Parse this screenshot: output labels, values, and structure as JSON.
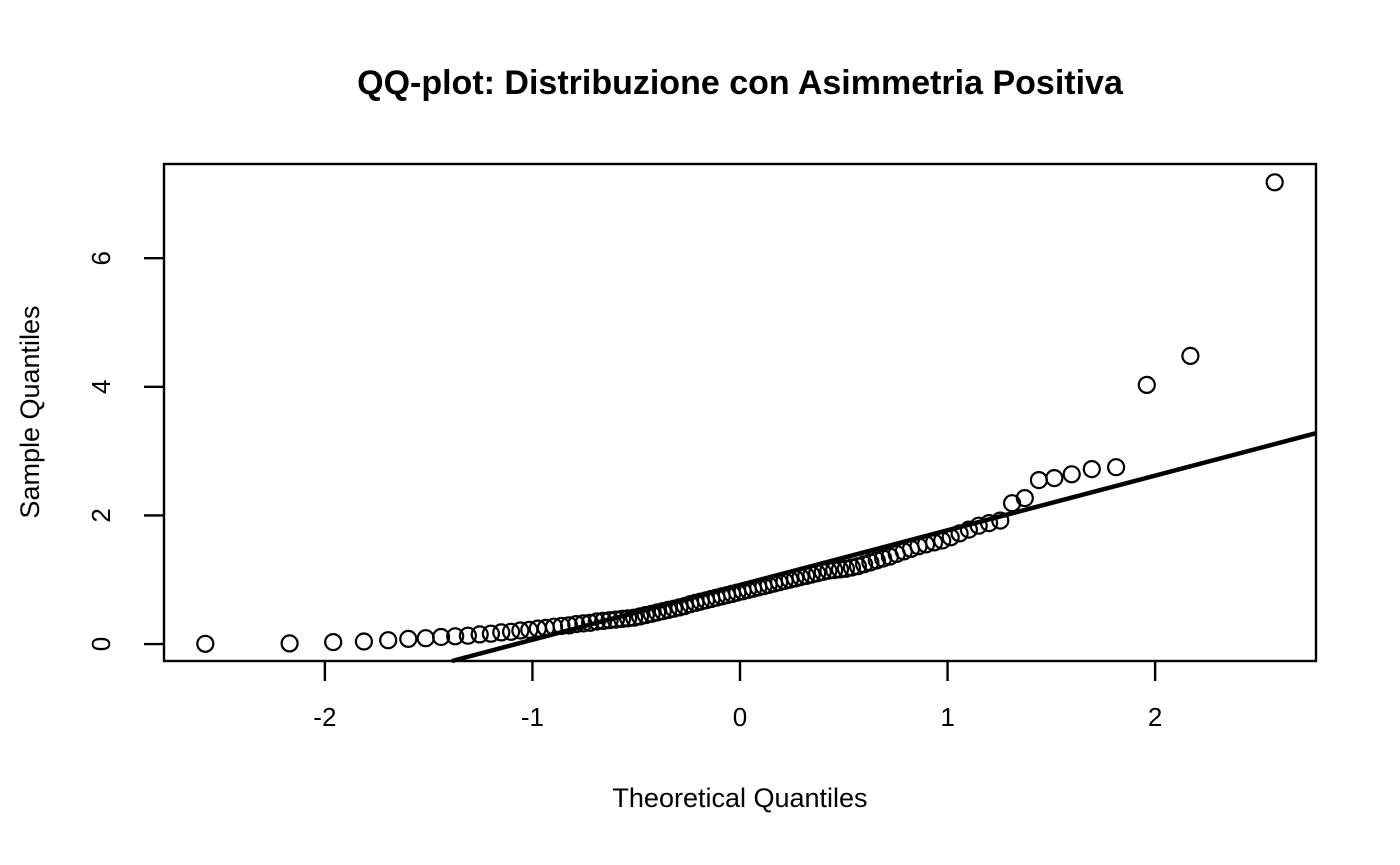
{
  "chart_data": {
    "type": "scatter",
    "subtype": "qq-plot",
    "title": "QQ-plot: Distribuzione con Asimmetria Positiva",
    "xlabel": "Theoretical Quantiles",
    "ylabel": "Sample Quantiles",
    "grid": false,
    "legend": "none",
    "xlim": [
      -2.775,
      2.775
    ],
    "ylim": [
      -0.264,
      7.465
    ],
    "x_ticks": [
      -2,
      -1,
      0,
      1,
      2
    ],
    "x_tick_labels": [
      "-2",
      "-1",
      "0",
      "1",
      "2"
    ],
    "y_ticks": [
      0,
      2,
      4,
      6
    ],
    "y_tick_labels": [
      "0",
      "2",
      "4",
      "6"
    ],
    "colors": {
      "background": "#ffffff",
      "points": "#000000",
      "reference_line": "#000000",
      "frame": "#000000",
      "text": "#000000"
    },
    "series": [
      {
        "name": "sample-vs-theoretical-quantiles",
        "marker": "open-circle",
        "x": [
          -2.576,
          -2.17,
          -1.96,
          -1.812,
          -1.695,
          -1.598,
          -1.514,
          -1.44,
          -1.372,
          -1.311,
          -1.254,
          -1.2,
          -1.15,
          -1.103,
          -1.058,
          -1.015,
          -0.974,
          -0.935,
          -0.896,
          -0.86,
          -0.824,
          -0.789,
          -0.755,
          -0.722,
          -0.69,
          -0.659,
          -0.628,
          -0.598,
          -0.568,
          -0.539,
          -0.51,
          -0.482,
          -0.454,
          -0.426,
          -0.399,
          -0.372,
          -0.345,
          -0.319,
          -0.292,
          -0.266,
          -0.24,
          -0.215,
          -0.189,
          -0.164,
          -0.138,
          -0.113,
          -0.088,
          -0.063,
          -0.038,
          -0.013,
          0.013,
          0.038,
          0.063,
          0.088,
          0.113,
          0.138,
          0.164,
          0.189,
          0.215,
          0.24,
          0.266,
          0.292,
          0.319,
          0.345,
          0.372,
          0.399,
          0.426,
          0.454,
          0.482,
          0.51,
          0.539,
          0.568,
          0.598,
          0.628,
          0.659,
          0.69,
          0.722,
          0.755,
          0.789,
          0.824,
          0.86,
          0.896,
          0.935,
          0.974,
          1.015,
          1.058,
          1.103,
          1.15,
          1.2,
          1.254,
          1.311,
          1.372,
          1.44,
          1.514,
          1.598,
          1.695,
          1.812,
          1.96,
          2.17,
          2.576
        ],
        "y": [
          0.003,
          0.01,
          0.03,
          0.04,
          0.06,
          0.08,
          0.09,
          0.11,
          0.12,
          0.13,
          0.15,
          0.16,
          0.18,
          0.19,
          0.21,
          0.22,
          0.24,
          0.25,
          0.27,
          0.28,
          0.29,
          0.31,
          0.32,
          0.33,
          0.35,
          0.36,
          0.37,
          0.38,
          0.39,
          0.4,
          0.41,
          0.43,
          0.45,
          0.47,
          0.49,
          0.51,
          0.53,
          0.55,
          0.57,
          0.59,
          0.62,
          0.64,
          0.66,
          0.68,
          0.7,
          0.72,
          0.74,
          0.76,
          0.78,
          0.8,
          0.82,
          0.84,
          0.86,
          0.88,
          0.9,
          0.92,
          0.94,
          0.96,
          0.98,
          1.0,
          1.02,
          1.04,
          1.06,
          1.08,
          1.1,
          1.12,
          1.14,
          1.15,
          1.16,
          1.17,
          1.19,
          1.21,
          1.24,
          1.27,
          1.3,
          1.33,
          1.36,
          1.4,
          1.44,
          1.48,
          1.52,
          1.55,
          1.58,
          1.61,
          1.66,
          1.72,
          1.78,
          1.84,
          1.88,
          1.92,
          2.19,
          2.27,
          2.55,
          2.58,
          2.64,
          2.72,
          2.75,
          4.03,
          4.48,
          7.18
        ]
      }
    ],
    "reference_line": {
      "name": "qqline",
      "slope": 0.851,
      "intercept": 0.917,
      "segment": {
        "x": [
          -1.388,
          2.775
        ],
        "y": [
          -0.264,
          3.279
        ]
      }
    }
  }
}
